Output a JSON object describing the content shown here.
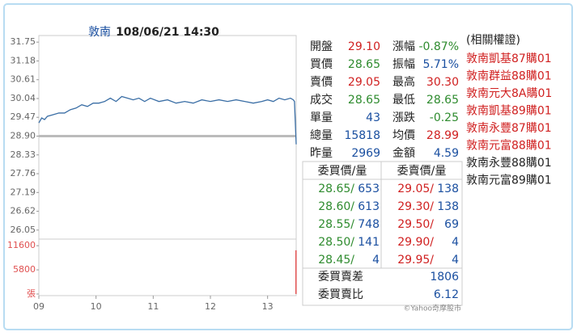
{
  "chart_data": {
    "type": "line",
    "title": "敦南",
    "subtitle": "108/06/21 14:30",
    "x": [
      9.0,
      9.05,
      9.1,
      9.15,
      9.25,
      9.35,
      9.45,
      9.55,
      9.65,
      9.75,
      9.85,
      9.95,
      10.05,
      10.15,
      10.25,
      10.35,
      10.45,
      10.55,
      10.65,
      10.75,
      10.85,
      10.95,
      11.1,
      11.25,
      11.4,
      11.55,
      11.7,
      11.85,
      12.0,
      12.15,
      12.3,
      12.45,
      12.6,
      12.75,
      12.9,
      13.0,
      13.1,
      13.2,
      13.3,
      13.4,
      13.45,
      13.47,
      13.5
    ],
    "values": [
      29.3,
      29.45,
      29.4,
      29.5,
      29.55,
      29.6,
      29.6,
      29.7,
      29.75,
      29.85,
      29.8,
      29.9,
      29.9,
      29.95,
      30.05,
      29.95,
      30.1,
      30.05,
      30.0,
      30.05,
      29.95,
      30.05,
      29.95,
      30.0,
      29.9,
      29.95,
      29.9,
      30.0,
      29.95,
      30.0,
      29.95,
      30.0,
      29.95,
      29.9,
      29.95,
      30.0,
      29.95,
      30.05,
      30.0,
      30.05,
      30.0,
      29.95,
      28.65
    ],
    "color": "#3a6ea5",
    "xlim": [
      9,
      13.5
    ],
    "xticks": [
      {
        "value": 9,
        "label": "09"
      },
      10,
      11,
      12,
      13
    ],
    "ylim": [
      25.85,
      31.95
    ],
    "yticks": [
      31.75,
      31.18,
      30.61,
      30.04,
      29.47,
      {
        "value": 28.9,
        "label": "28.90"
      },
      28.33,
      27.76,
      27.19,
      26.62,
      26.05
    ],
    "reference": 28.9,
    "reference_color": "#bbbbbb",
    "volume": {
      "x": [
        13.5
      ],
      "values": [
        10500
      ],
      "color": "#e05050",
      "ylim": [
        0,
        12800
      ],
      "yticks": [
        11600,
        5800,
        {
          "value": 0,
          "label": "張"
        }
      ]
    }
  },
  "quote": {
    "rows": [
      [
        "開盤",
        "29.10",
        "漲幅",
        "-0.87%"
      ],
      [
        "買價",
        "28.65",
        "振幅",
        "5.71%"
      ],
      [
        "賣價",
        "29.05",
        "最高",
        "30.30"
      ],
      [
        "成交",
        "28.65",
        "最低",
        "28.65"
      ],
      [
        "單量",
        "43",
        "漲跌",
        "-0.25"
      ],
      [
        "總量",
        "15818",
        "均價",
        "28.99"
      ],
      [
        "昨量",
        "2969",
        "金額",
        "4.59"
      ]
    ]
  },
  "order_book": {
    "headers": [
      "委買價/量",
      "委賣價/量"
    ],
    "rows": [
      [
        "28.65/",
        "653",
        "29.05/",
        "138"
      ],
      [
        "28.60/",
        "613",
        "29.30/",
        "138"
      ],
      [
        "28.55/",
        "748",
        "29.50/",
        "69"
      ],
      [
        "28.50/",
        "141",
        "29.90/",
        "4"
      ],
      [
        "28.45/",
        "4",
        "29.95/",
        "4"
      ]
    ],
    "summary": [
      [
        "委買賣差",
        "1806"
      ],
      [
        "委買賣比",
        "6.12"
      ]
    ]
  },
  "footer": "©Yahoo奇摩股市",
  "warrants": {
    "title": "(相關權證)",
    "items": [
      "敦南凱基87購01",
      "敦南群益88購01",
      "敦南元大8A購01",
      "敦南凱基89購01",
      "敦南永豐87購01",
      "敦南元富88購01",
      "敦南永豐88購01",
      "敦南元富89購01"
    ]
  }
}
